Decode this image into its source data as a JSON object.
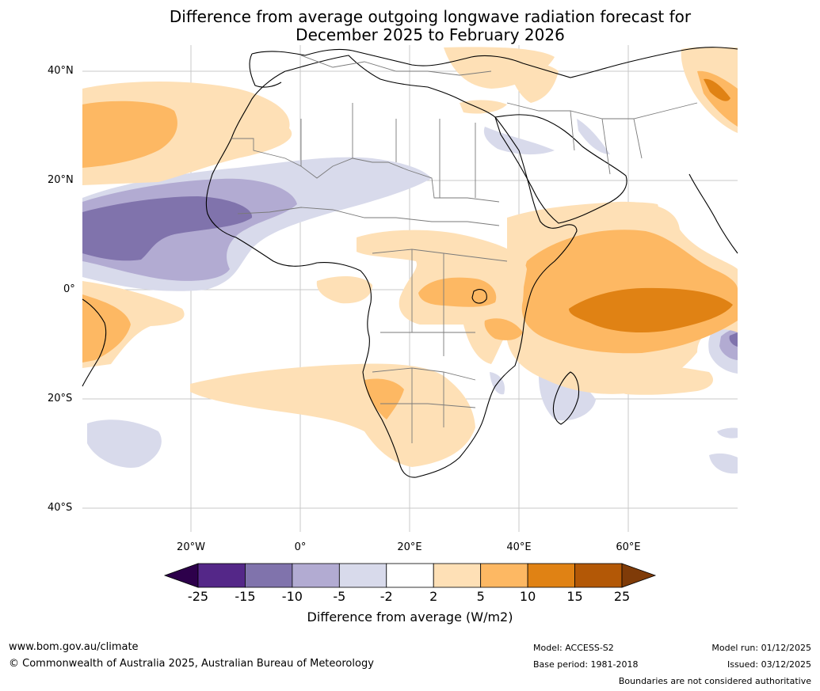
{
  "title": {
    "line1": "Difference from average outgoing longwave radiation forecast for",
    "line2": "December 2025 to February 2026"
  },
  "lat_labels": [
    "40°N",
    "20°N",
    "0°",
    "20°S",
    "40°S"
  ],
  "lon_labels": [
    "20°W",
    "0°",
    "20°E",
    "40°E",
    "60°E"
  ],
  "colorbar": {
    "title": "Difference from average (W/m2)",
    "ticks": [
      "-25",
      "-15",
      "-10",
      "-5",
      "-2",
      "2",
      "5",
      "10",
      "15",
      "25"
    ],
    "colors": {
      "under": "#2d004b",
      "bins": [
        "#542788",
        "#8073ac",
        "#b2abd2",
        "#d8daeb",
        "#ffffff",
        "#fee0b6",
        "#fdb863",
        "#e08214",
        "#b35806"
      ],
      "over": "#7f3b08"
    }
  },
  "footer": {
    "website": "www.bom.gov.au/climate",
    "copyright": "© Commonwealth of Australia 2025, Australian Bureau of Meteorology",
    "model": "Model: ACCESS-S2",
    "base_period": "Base period: 1981-2018",
    "model_run": "Model run: 01/12/2025",
    "issued": "Issued: 03/12/2025",
    "disclaimer": "Boundaries are not considered authoritative"
  }
}
